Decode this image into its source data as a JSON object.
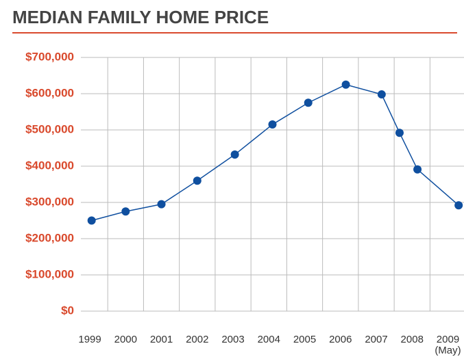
{
  "chart_data": {
    "type": "line",
    "title": "MEDIAN FAMILY HOME PRICE",
    "x": [
      1999.05,
      2000,
      2001,
      2002,
      2003.05,
      2004.1,
      2005.1,
      2006.15,
      2007.15,
      2007.65,
      2008.15,
      2009.3
    ],
    "series": [
      {
        "name": "Median family home price",
        "color": "#0f4f9f",
        "values": [
          250000,
          275000,
          295000,
          360000,
          432000,
          515000,
          575000,
          625000,
          598000,
          492000,
          391000,
          292000
        ]
      }
    ],
    "xlim": [
      1998.75,
      2009.45
    ],
    "xticks": [
      1999,
      2000,
      2001,
      2002,
      2003,
      2004,
      2005,
      2006,
      2007,
      2008,
      2009
    ],
    "x_annotation": "(May)",
    "ylim": [
      0,
      700000
    ],
    "yticks": [
      {
        "value": 0,
        "label": "$0"
      },
      {
        "value": 100000,
        "label": "$100,000"
      },
      {
        "value": 200000,
        "label": "$200,000"
      },
      {
        "value": 300000,
        "label": "$300,000"
      },
      {
        "value": 400000,
        "label": "$400,000"
      },
      {
        "value": 500000,
        "label": "$500,000"
      },
      {
        "value": 600000,
        "label": "$600,000"
      },
      {
        "value": 700000,
        "label": "$700,000"
      }
    ],
    "grid": true
  }
}
